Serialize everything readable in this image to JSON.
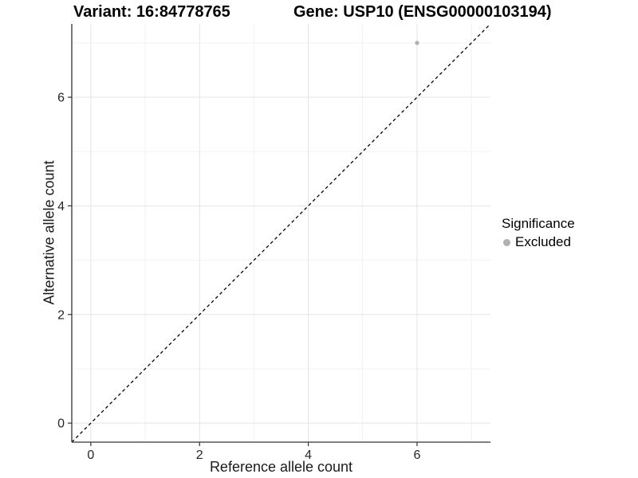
{
  "titles": {
    "left": "Variant: 16:84778765",
    "right": "Gene: USP10 (ENSG00000103194)"
  },
  "legend": {
    "title": "Significance",
    "position": "right",
    "items": [
      {
        "label": "Excluded",
        "color": "#b0b0b0",
        "shape": "circle"
      }
    ]
  },
  "chart_data": {
    "type": "scatter",
    "xlabel": "Reference allele count",
    "ylabel": "Alternative allele count",
    "xlim": [
      -0.35,
      7.35
    ],
    "ylim": [
      -0.35,
      7.35
    ],
    "x_ticks": [
      0,
      2,
      4,
      6
    ],
    "y_ticks": [
      0,
      2,
      4,
      6
    ],
    "x_minor_ticks": [
      1,
      3,
      5,
      7
    ],
    "y_minor_ticks": [
      1,
      3,
      5,
      7
    ],
    "grid": true,
    "legend_position": "right",
    "series": [
      {
        "name": "Excluded",
        "color": "#b0b0b0",
        "point_radius": 2.6,
        "points": [
          {
            "x": 6,
            "y": 7
          }
        ]
      }
    ],
    "reference_line": {
      "type": "identity",
      "slope": 1,
      "intercept": 0,
      "style": "dashed",
      "color": "#000000"
    }
  },
  "colors": {
    "background": "#ffffff",
    "axis": "#333333",
    "grid_major": "#e4e4e4",
    "grid_minor": "#f1f1f1",
    "tick_label": "#262626",
    "title": "#000000"
  }
}
